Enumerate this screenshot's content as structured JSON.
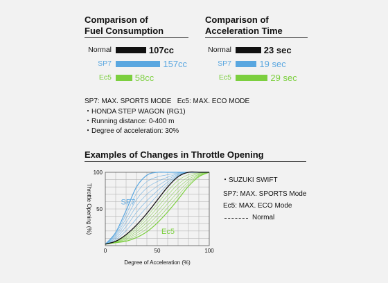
{
  "colors": {
    "normal": "#111111",
    "sp7": "#5aa7e0",
    "ec5": "#7ccf3f",
    "grid": "#b5b5b5",
    "background": "#f2f2f2"
  },
  "fuel": {
    "title_line1": "Comparison of",
    "title_line2": "Fuel Consumption"
  },
  "accel": {
    "title_line1": "Comparison of",
    "title_line2": "Acceleration Time"
  },
  "notes": {
    "modes": "SP7: MAX. SPORTS MODE   Ec5: MAX. ECO MODE",
    "vehicle": "・HONDA STEP WAGON (RG1)",
    "distance": "・Running distance: 0-400 m",
    "degree": "・Degree of acceleration: 30%"
  },
  "throttle": {
    "title": "Examples of Changes in Throttle Opening",
    "legend_vehicle": "・SUZUKI SWIFT",
    "legend_sp7": "SP7:  MAX. SPORTS Mode",
    "legend_ec5": "Ec5:  MAX. ECO Mode",
    "legend_normal": "Normal"
  },
  "chart_data": [
    {
      "type": "bar",
      "orientation": "horizontal",
      "title": "Comparison of Fuel Consumption",
      "categories": [
        "Normal",
        "SP7",
        "Ec5"
      ],
      "values": [
        107,
        157,
        58
      ],
      "value_labels": [
        "107cc",
        "157cc",
        "58cc"
      ],
      "unit": "cc",
      "colors": [
        "#111111",
        "#5aa7e0",
        "#7ccf3f"
      ]
    },
    {
      "type": "bar",
      "orientation": "horizontal",
      "title": "Comparison of Acceleration Time",
      "categories": [
        "Normal",
        "SP7",
        "Ec5"
      ],
      "values": [
        23,
        19,
        29
      ],
      "value_labels": [
        "23 sec",
        "19 sec",
        "29 sec"
      ],
      "unit": "sec",
      "colors": [
        "#111111",
        "#5aa7e0",
        "#7ccf3f"
      ]
    },
    {
      "type": "line",
      "title": "Examples of Changes in Throttle Opening",
      "xlabel": "Degree of Acceleration (%)",
      "ylabel": "Throttle Opening (%)",
      "xlim": [
        0,
        100
      ],
      "ylim": [
        0,
        100
      ],
      "xticks": [
        "0",
        "50",
        "100"
      ],
      "yticks": [
        "50",
        "100"
      ],
      "grid": true,
      "annotations": [
        "SP7",
        "Ec5"
      ],
      "series": [
        {
          "name": "Normal",
          "color": "#111111",
          "x": [
            0,
            10,
            20,
            30,
            40,
            50,
            60,
            70,
            80,
            90,
            100
          ],
          "y": [
            2,
            6,
            15,
            28,
            44,
            62,
            80,
            94,
            100,
            100,
            100
          ]
        },
        {
          "name": "SP7",
          "color": "#5aa7e0",
          "x": [
            0,
            10,
            20,
            30,
            40,
            50,
            60,
            70,
            80,
            90,
            100
          ],
          "y": [
            2,
            18,
            48,
            80,
            96,
            100,
            100,
            100,
            100,
            100,
            100
          ]
        },
        {
          "name": "Ec5",
          "color": "#7ccf3f",
          "x": [
            0,
            10,
            20,
            30,
            40,
            50,
            60,
            70,
            80,
            90,
            100
          ],
          "y": [
            2,
            4,
            6,
            11,
            19,
            31,
            46,
            63,
            81,
            94,
            100
          ]
        }
      ]
    }
  ]
}
